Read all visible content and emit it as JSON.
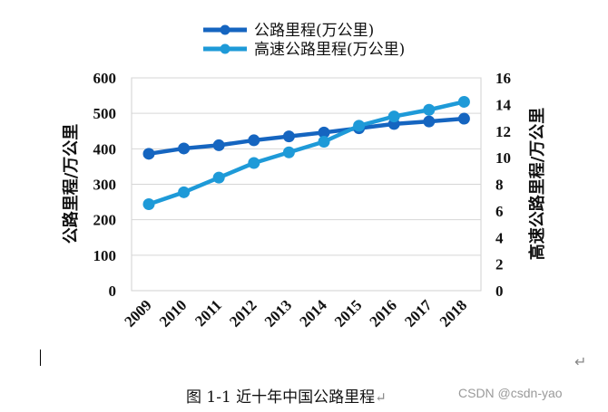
{
  "chart_data": {
    "type": "line",
    "categories": [
      "2009",
      "2010",
      "2011",
      "2012",
      "2013",
      "2014",
      "2015",
      "2016",
      "2017",
      "2018"
    ],
    "series": [
      {
        "name": "公路里程(万公里)",
        "axis": "left",
        "color": "#1565c0",
        "values": [
          386,
          401,
          410,
          424,
          435,
          446,
          458,
          470,
          477,
          485
        ]
      },
      {
        "name": "高速公路里程(万公里)",
        "axis": "right",
        "color": "#1e9ad8",
        "values": [
          6.5,
          7.4,
          8.5,
          9.6,
          10.4,
          11.2,
          12.4,
          13.1,
          13.6,
          14.2
        ]
      }
    ],
    "y_left": {
      "label": "公路里程/万公里",
      "ylim": [
        0,
        600
      ],
      "ticks": [
        0,
        100,
        200,
        300,
        400,
        500,
        600
      ]
    },
    "y_right": {
      "label": "高速公路里程/万公里",
      "ylim": [
        0,
        16
      ],
      "ticks": [
        0,
        2,
        4,
        6,
        8,
        10,
        12,
        14,
        16
      ]
    },
    "grid": true,
    "legend": "top-center"
  },
  "caption": {
    "text": "图 1-1 近十年中国公路里程",
    "mark": "↵"
  },
  "watermark": "CSDN @csdn-yao",
  "paragraph_mark": "↵"
}
